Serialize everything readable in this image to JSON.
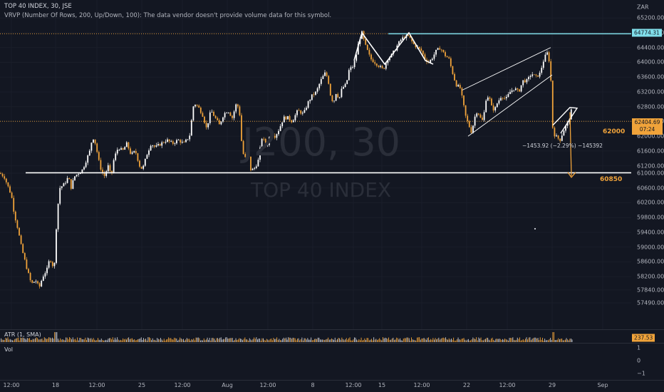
{
  "header": {
    "symbol_line": "TOP 40 INDEX, 30, JSE",
    "indicator_line": "VRVP (Number Of Rows, 200, Up/Down, 100): The data vendor doesn't provide volume data for this symbol."
  },
  "watermark": {
    "ticker": "J200, 30",
    "name": "TOP 40 INDEX"
  },
  "price_axis": {
    "currency": "ZAR",
    "ticks": [
      "65200.00",
      "64800.00",
      "64400.00",
      "64000.00",
      "63600.00",
      "63200.00",
      "62800.00",
      "62400.00",
      "62000.00",
      "61600.00",
      "61200.00",
      "61000.00",
      "60600.00",
      "60200.00",
      "59800.00",
      "59400.00",
      "59000.00",
      "58600.00",
      "58200.00",
      "57840.00",
      "57490.00"
    ],
    "marker_high": "64774.31",
    "marker_current": "62404.69",
    "marker_countdown": "07:24",
    "atr_value": "237.53"
  },
  "annotations": {
    "level_62000": "62000",
    "level_60850": "60850",
    "measure": "−1453.92 (−2.29%) −145392"
  },
  "atr_pane": {
    "label": "ATR (1, SMA)"
  },
  "vol_pane": {
    "label": "Vol",
    "ticks": [
      "1",
      "0",
      "−1"
    ]
  },
  "time_axis": {
    "ticks": [
      "12:00",
      "18",
      "12:00",
      "25",
      "12:00",
      "Aug",
      "12:00",
      "8",
      "12:00",
      "15",
      "12:00",
      "22",
      "12:00",
      "29",
      "Sep"
    ]
  },
  "colors": {
    "bg": "#131722",
    "up": "#ffffff",
    "down": "#f0a33a",
    "accent_orange": "#f0a33a",
    "cyan_line": "#80deea",
    "grid": "#1e222d"
  },
  "chart_data": {
    "type": "candlestick",
    "title": "TOP 40 INDEX, 30, JSE",
    "ylim": [
      57400,
      65300
    ],
    "price_path": [
      [
        0,
        61000
      ],
      [
        6,
        60900
      ],
      [
        12,
        60600
      ],
      [
        16,
        60400
      ],
      [
        20,
        59900
      ],
      [
        25,
        59500
      ],
      [
        30,
        59000
      ],
      [
        38,
        58400
      ],
      [
        44,
        58000
      ],
      [
        50,
        58100
      ],
      [
        55,
        57900
      ],
      [
        60,
        58200
      ],
      [
        66,
        58400
      ],
      [
        70,
        58700
      ],
      [
        76,
        58400
      ],
      [
        80,
        59900
      ],
      [
        84,
        60600
      ],
      [
        90,
        60700
      ],
      [
        96,
        60900
      ],
      [
        100,
        60600
      ],
      [
        104,
        60900
      ],
      [
        110,
        61000
      ],
      [
        116,
        61100
      ],
      [
        120,
        61300
      ],
      [
        126,
        61600
      ],
      [
        130,
        62000
      ],
      [
        134,
        61800
      ],
      [
        140,
        61200
      ],
      [
        146,
        60900
      ],
      [
        152,
        61200
      ],
      [
        156,
        60900
      ],
      [
        160,
        61400
      ],
      [
        166,
        61700
      ],
      [
        172,
        61600
      ],
      [
        178,
        61800
      ],
      [
        184,
        61500
      ],
      [
        190,
        61600
      ],
      [
        196,
        61200
      ],
      [
        200,
        61100
      ],
      [
        206,
        61500
      ],
      [
        212,
        61800
      ],
      [
        218,
        61700
      ],
      [
        226,
        61800
      ],
      [
        234,
        61900
      ],
      [
        242,
        61800
      ],
      [
        250,
        61900
      ],
      [
        258,
        61800
      ],
      [
        266,
        62000
      ],
      [
        272,
        62900
      ],
      [
        278,
        62800
      ],
      [
        284,
        62600
      ],
      [
        290,
        62200
      ],
      [
        296,
        62700
      ],
      [
        302,
        62500
      ],
      [
        308,
        62300
      ],
      [
        314,
        62600
      ],
      [
        320,
        62700
      ],
      [
        326,
        62500
      ],
      [
        332,
        62900
      ],
      [
        336,
        62700
      ],
      [
        340,
        61600
      ],
      [
        344,
        61400
      ],
      [
        348,
        61600
      ],
      [
        352,
        61100
      ],
      [
        356,
        61100
      ],
      [
        362,
        61300
      ],
      [
        368,
        62000
      ],
      [
        374,
        61700
      ],
      [
        380,
        62100
      ],
      [
        386,
        62000
      ],
      [
        392,
        62200
      ],
      [
        398,
        62500
      ],
      [
        404,
        62500
      ],
      [
        410,
        62400
      ],
      [
        418,
        62700
      ],
      [
        426,
        62600
      ],
      [
        432,
        62900
      ],
      [
        438,
        63100
      ],
      [
        444,
        63200
      ],
      [
        450,
        63500
      ],
      [
        456,
        63700
      ],
      [
        460,
        63600
      ],
      [
        464,
        63100
      ],
      [
        468,
        62900
      ],
      [
        472,
        63200
      ],
      [
        476,
        63000
      ],
      [
        480,
        63300
      ],
      [
        486,
        63400
      ],
      [
        490,
        63800
      ],
      [
        496,
        63900
      ],
      [
        500,
        64200
      ],
      [
        504,
        64600
      ],
      [
        508,
        64800
      ],
      [
        512,
        64500
      ],
      [
        516,
        64300
      ],
      [
        520,
        64100
      ],
      [
        526,
        64000
      ],
      [
        532,
        63900
      ],
      [
        538,
        63800
      ],
      [
        544,
        64100
      ],
      [
        550,
        64200
      ],
      [
        556,
        64400
      ],
      [
        562,
        64600
      ],
      [
        568,
        64700
      ],
      [
        574,
        64700
      ],
      [
        580,
        64500
      ],
      [
        586,
        64400
      ],
      [
        592,
        64300
      ],
      [
        596,
        64100
      ],
      [
        602,
        64000
      ],
      [
        606,
        64100
      ],
      [
        612,
        64300
      ],
      [
        618,
        64400
      ],
      [
        624,
        64200
      ],
      [
        630,
        64100
      ],
      [
        634,
        63800
      ],
      [
        640,
        63400
      ],
      [
        646,
        63300
      ],
      [
        650,
        62900
      ],
      [
        654,
        62500
      ],
      [
        658,
        62300
      ],
      [
        662,
        62100
      ],
      [
        666,
        62500
      ],
      [
        670,
        62700
      ],
      [
        674,
        62500
      ],
      [
        678,
        62400
      ],
      [
        682,
        63000
      ],
      [
        686,
        63100
      ],
      [
        690,
        62800
      ],
      [
        694,
        62700
      ],
      [
        698,
        62900
      ],
      [
        704,
        63100
      ],
      [
        710,
        63000
      ],
      [
        716,
        63200
      ],
      [
        722,
        63300
      ],
      [
        728,
        63200
      ],
      [
        734,
        63500
      ],
      [
        740,
        63500
      ],
      [
        746,
        63700
      ],
      [
        752,
        63600
      ],
      [
        758,
        63700
      ],
      [
        762,
        64000
      ],
      [
        766,
        64200
      ],
      [
        770,
        64300
      ],
      [
        772,
        63500
      ],
      [
        774,
        63500
      ],
      [
        776,
        62100
      ],
      [
        780,
        62000
      ],
      [
        786,
        61900
      ],
      [
        792,
        62200
      ],
      [
        798,
        62400
      ],
      [
        802,
        62700
      ],
      [
        804,
        62400
      ]
    ],
    "level_high": 64774.31,
    "level_current": 62404.69,
    "level_62000": 62000,
    "level_60850": 60850,
    "projection_target": 60850
  }
}
